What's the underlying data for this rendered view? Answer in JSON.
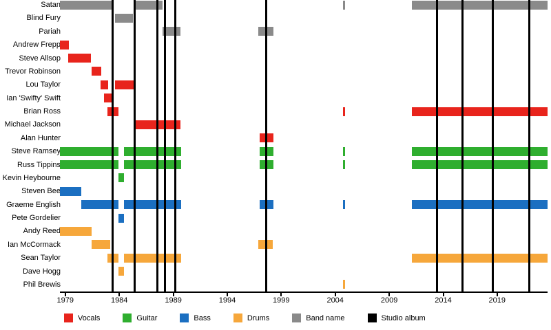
{
  "chart_data": {
    "type": "timeline",
    "subtype": "band-members-gantt",
    "x_axis": {
      "min": 1978.5,
      "max": 2023.67,
      "tick_years": [
        1979,
        1984,
        1989,
        1994,
        1999,
        2004,
        2009,
        2014,
        2019
      ],
      "ticks": [
        "1979",
        "1984",
        "1989",
        "1994",
        "1999",
        "2004",
        "2009",
        "2014",
        "2019"
      ]
    },
    "colors": {
      "vocals": "#e8241c",
      "guitar": "#2fae2f",
      "bass": "#1b6fc1",
      "drums": "#f6a73b",
      "band": "#8a8a8a",
      "album": "#000000"
    },
    "album_lines": [
      1983.4,
      1985.4,
      1987.5,
      1988.2,
      1989.2,
      1997.6,
      2013.4,
      2015.8,
      2018.6,
      2022.0
    ],
    "rows": [
      {
        "label": "Satan",
        "color": "band",
        "segments": [
          [
            1978.5,
            1983.4
          ],
          [
            1985.45,
            1988.0
          ],
          [
            2004.7,
            2004.9
          ],
          [
            2011.1,
            2023.67
          ]
        ]
      },
      {
        "label": "Blind Fury",
        "color": "band",
        "segments": [
          [
            1983.6,
            1985.3
          ]
        ]
      },
      {
        "label": "Pariah",
        "color": "band",
        "segments": [
          [
            1988.0,
            1989.7
          ],
          [
            1996.85,
            1998.3
          ]
        ]
      },
      {
        "label": "Andrew Frepp",
        "color": "vocals",
        "segments": [
          [
            1978.5,
            1979.3
          ]
        ]
      },
      {
        "label": "Steve Allsop",
        "color": "vocals",
        "segments": [
          [
            1979.25,
            1981.4
          ]
        ]
      },
      {
        "label": "Trevor Robinson",
        "color": "vocals",
        "segments": [
          [
            1981.4,
            1982.35
          ]
        ]
      },
      {
        "label": "Lou Taylor",
        "color": "vocals",
        "segments": [
          [
            1982.25,
            1982.95
          ],
          [
            1983.6,
            1985.35
          ]
        ]
      },
      {
        "label": "Ian 'Swifty' Swift",
        "color": "vocals",
        "segments": [
          [
            1982.55,
            1983.35
          ]
        ]
      },
      {
        "label": "Brian Ross",
        "color": "vocals",
        "segments": [
          [
            1982.9,
            1983.9
          ],
          [
            2004.7,
            2004.9
          ],
          [
            2011.1,
            2023.67
          ]
        ]
      },
      {
        "label": "Michael Jackson",
        "color": "vocals",
        "segments": [
          [
            1985.45,
            1989.7
          ]
        ]
      },
      {
        "label": "Alan Hunter",
        "color": "vocals",
        "segments": [
          [
            1997.0,
            1998.3
          ]
        ]
      },
      {
        "label": "Steve Ramsey",
        "color": "guitar",
        "segments": [
          [
            1978.5,
            1983.9
          ],
          [
            1984.45,
            1989.7
          ],
          [
            1997.0,
            1998.3
          ],
          [
            2004.7,
            2004.9
          ],
          [
            2011.1,
            2023.67
          ]
        ]
      },
      {
        "label": "Russ Tippins",
        "color": "guitar",
        "segments": [
          [
            1978.5,
            1983.9
          ],
          [
            1984.45,
            1989.7
          ],
          [
            1997.0,
            1998.3
          ],
          [
            2004.7,
            2004.9
          ],
          [
            2011.1,
            2023.67
          ]
        ]
      },
      {
        "label": "Kevin Heybourne",
        "color": "guitar",
        "segments": [
          [
            1983.95,
            1984.45
          ]
        ]
      },
      {
        "label": "Steven Bee",
        "color": "bass",
        "segments": [
          [
            1978.5,
            1980.5
          ]
        ]
      },
      {
        "label": "Graeme English",
        "color": "bass",
        "segments": [
          [
            1980.5,
            1983.9
          ],
          [
            1984.45,
            1989.7
          ],
          [
            1997.0,
            1998.3
          ],
          [
            2004.7,
            2004.9
          ],
          [
            2011.1,
            2023.67
          ]
        ]
      },
      {
        "label": "Pete Gordelier",
        "color": "bass",
        "segments": [
          [
            1983.95,
            1984.45
          ]
        ]
      },
      {
        "label": "Andy Reed",
        "color": "drums",
        "segments": [
          [
            1978.5,
            1981.4
          ]
        ]
      },
      {
        "label": "Ian McCormack",
        "color": "drums",
        "segments": [
          [
            1981.4,
            1983.15
          ],
          [
            1996.85,
            1998.2
          ]
        ]
      },
      {
        "label": "Sean Taylor",
        "color": "drums",
        "segments": [
          [
            1982.9,
            1983.9
          ],
          [
            1984.45,
            1989.7
          ],
          [
            2011.1,
            2023.67
          ]
        ]
      },
      {
        "label": "Dave Hogg",
        "color": "drums",
        "segments": [
          [
            1983.95,
            1984.45
          ]
        ]
      },
      {
        "label": "Phil Brewis",
        "color": "drums",
        "segments": [
          [
            2004.7,
            2004.9
          ]
        ]
      }
    ],
    "legend": [
      {
        "label": "Vocals",
        "color": "vocals"
      },
      {
        "label": "Guitar",
        "color": "guitar"
      },
      {
        "label": "Bass",
        "color": "bass"
      },
      {
        "label": "Drums",
        "color": "drums"
      },
      {
        "label": "Band name",
        "color": "band"
      },
      {
        "label": "Studio album",
        "color": "album"
      }
    ]
  }
}
